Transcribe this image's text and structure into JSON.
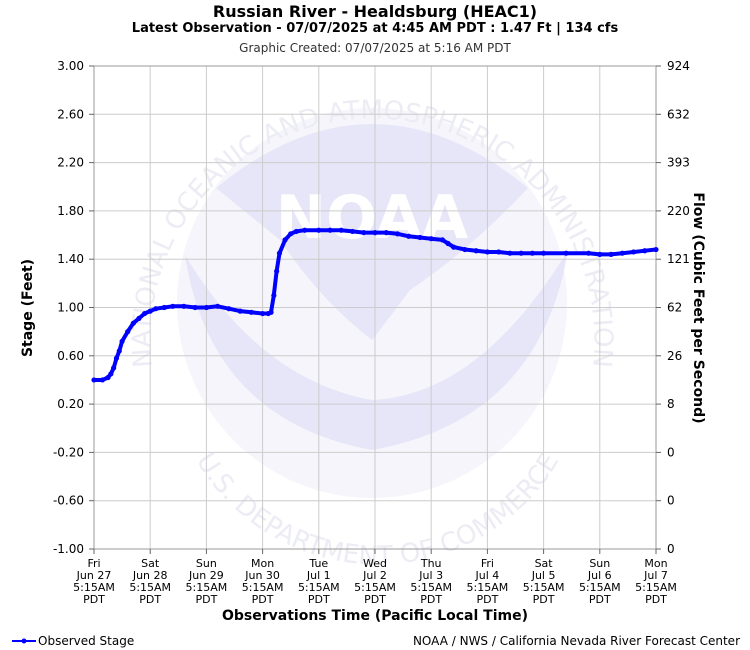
{
  "header": {
    "title": "Russian River - Healdsburg (HEAC1)",
    "latest": "Latest Observation - 07/07/2025 at 4:45 AM PDT : 1.47 Ft | 134 cfs",
    "created": "Graphic Created: 07/07/2025 at 5:16 AM PDT"
  },
  "watermark": {
    "logo_text": "NOAA",
    "ring_top": "NATIONAL OCEANIC AND ATMOSPHERIC ADMINISTRATION",
    "ring_bottom": "U.S. DEPARTMENT OF COMMERCE"
  },
  "legend": {
    "series_label": "Observed Stage"
  },
  "footer": {
    "credit": "NOAA / NWS / California Nevada River Forecast Center"
  },
  "colors": {
    "series": "#0000ff",
    "grid": "#cccccc",
    "watermark": "#e9e9f7"
  },
  "chart_data": {
    "type": "line",
    "xlabel": "Observations Time (Pacific Local Time)",
    "ylabel": "Stage (Feet)",
    "y2label": "Flow (Cubic Feet per Second)",
    "ylim": [
      -1.0,
      3.0
    ],
    "yticks": [
      "3.00",
      "2.60",
      "2.20",
      "1.80",
      "1.40",
      "1.00",
      "0.60",
      "0.20",
      "-0.20",
      "-0.60",
      "-1.00"
    ],
    "y2ticks": [
      "924",
      "632",
      "393",
      "220",
      "121",
      "62",
      "26",
      "8",
      "0",
      "0",
      "0"
    ],
    "xticks": [
      [
        "Fri",
        "Jun 27",
        "5:15AM",
        "PDT"
      ],
      [
        "Sat",
        "Jun 28",
        "5:15AM",
        "PDT"
      ],
      [
        "Sun",
        "Jun 29",
        "5:15AM",
        "PDT"
      ],
      [
        "Mon",
        "Jun 30",
        "5:15AM",
        "PDT"
      ],
      [
        "Tue",
        "Jul 1",
        "5:15AM",
        "PDT"
      ],
      [
        "Wed",
        "Jul 2",
        "5:15AM",
        "PDT"
      ],
      [
        "Thu",
        "Jul 3",
        "5:15AM",
        "PDT"
      ],
      [
        "Fri",
        "Jul 4",
        "5:15AM",
        "PDT"
      ],
      [
        "Sat",
        "Jul 5",
        "5:15AM",
        "PDT"
      ],
      [
        "Sun",
        "Jul 6",
        "5:15AM",
        "PDT"
      ],
      [
        "Mon",
        "Jul 7",
        "5:15AM",
        "PDT"
      ]
    ],
    "grid": true,
    "legend_position": "bottom-left",
    "series": [
      {
        "name": "Observed Stage",
        "x_unit": "days from Fri Jun 27 5:15AM PDT",
        "x": [
          0,
          0.15,
          0.25,
          0.3,
          0.35,
          0.4,
          0.45,
          0.5,
          0.6,
          0.7,
          0.8,
          0.9,
          1.0,
          1.1,
          1.25,
          1.4,
          1.6,
          1.8,
          2.0,
          2.2,
          2.4,
          2.6,
          2.8,
          3.0,
          3.1,
          3.15,
          3.2,
          3.25,
          3.3,
          3.4,
          3.5,
          3.6,
          3.75,
          4.0,
          4.2,
          4.4,
          4.6,
          4.8,
          5.0,
          5.2,
          5.4,
          5.6,
          5.8,
          6.0,
          6.2,
          6.3,
          6.4,
          6.6,
          6.8,
          7.0,
          7.2,
          7.4,
          7.6,
          7.8,
          8.0,
          8.4,
          8.8,
          9.0,
          9.2,
          9.4,
          9.6,
          9.8,
          10.0
        ],
        "y": [
          0.4,
          0.4,
          0.42,
          0.45,
          0.5,
          0.58,
          0.64,
          0.72,
          0.8,
          0.87,
          0.91,
          0.95,
          0.97,
          0.99,
          1.0,
          1.01,
          1.01,
          1.0,
          1.0,
          1.01,
          0.99,
          0.97,
          0.96,
          0.95,
          0.95,
          0.96,
          1.1,
          1.3,
          1.45,
          1.56,
          1.61,
          1.63,
          1.64,
          1.64,
          1.64,
          1.64,
          1.63,
          1.62,
          1.62,
          1.62,
          1.61,
          1.59,
          1.58,
          1.57,
          1.56,
          1.53,
          1.5,
          1.48,
          1.47,
          1.46,
          1.46,
          1.45,
          1.45,
          1.45,
          1.45,
          1.45,
          1.45,
          1.44,
          1.44,
          1.45,
          1.46,
          1.47,
          1.48
        ]
      }
    ]
  }
}
